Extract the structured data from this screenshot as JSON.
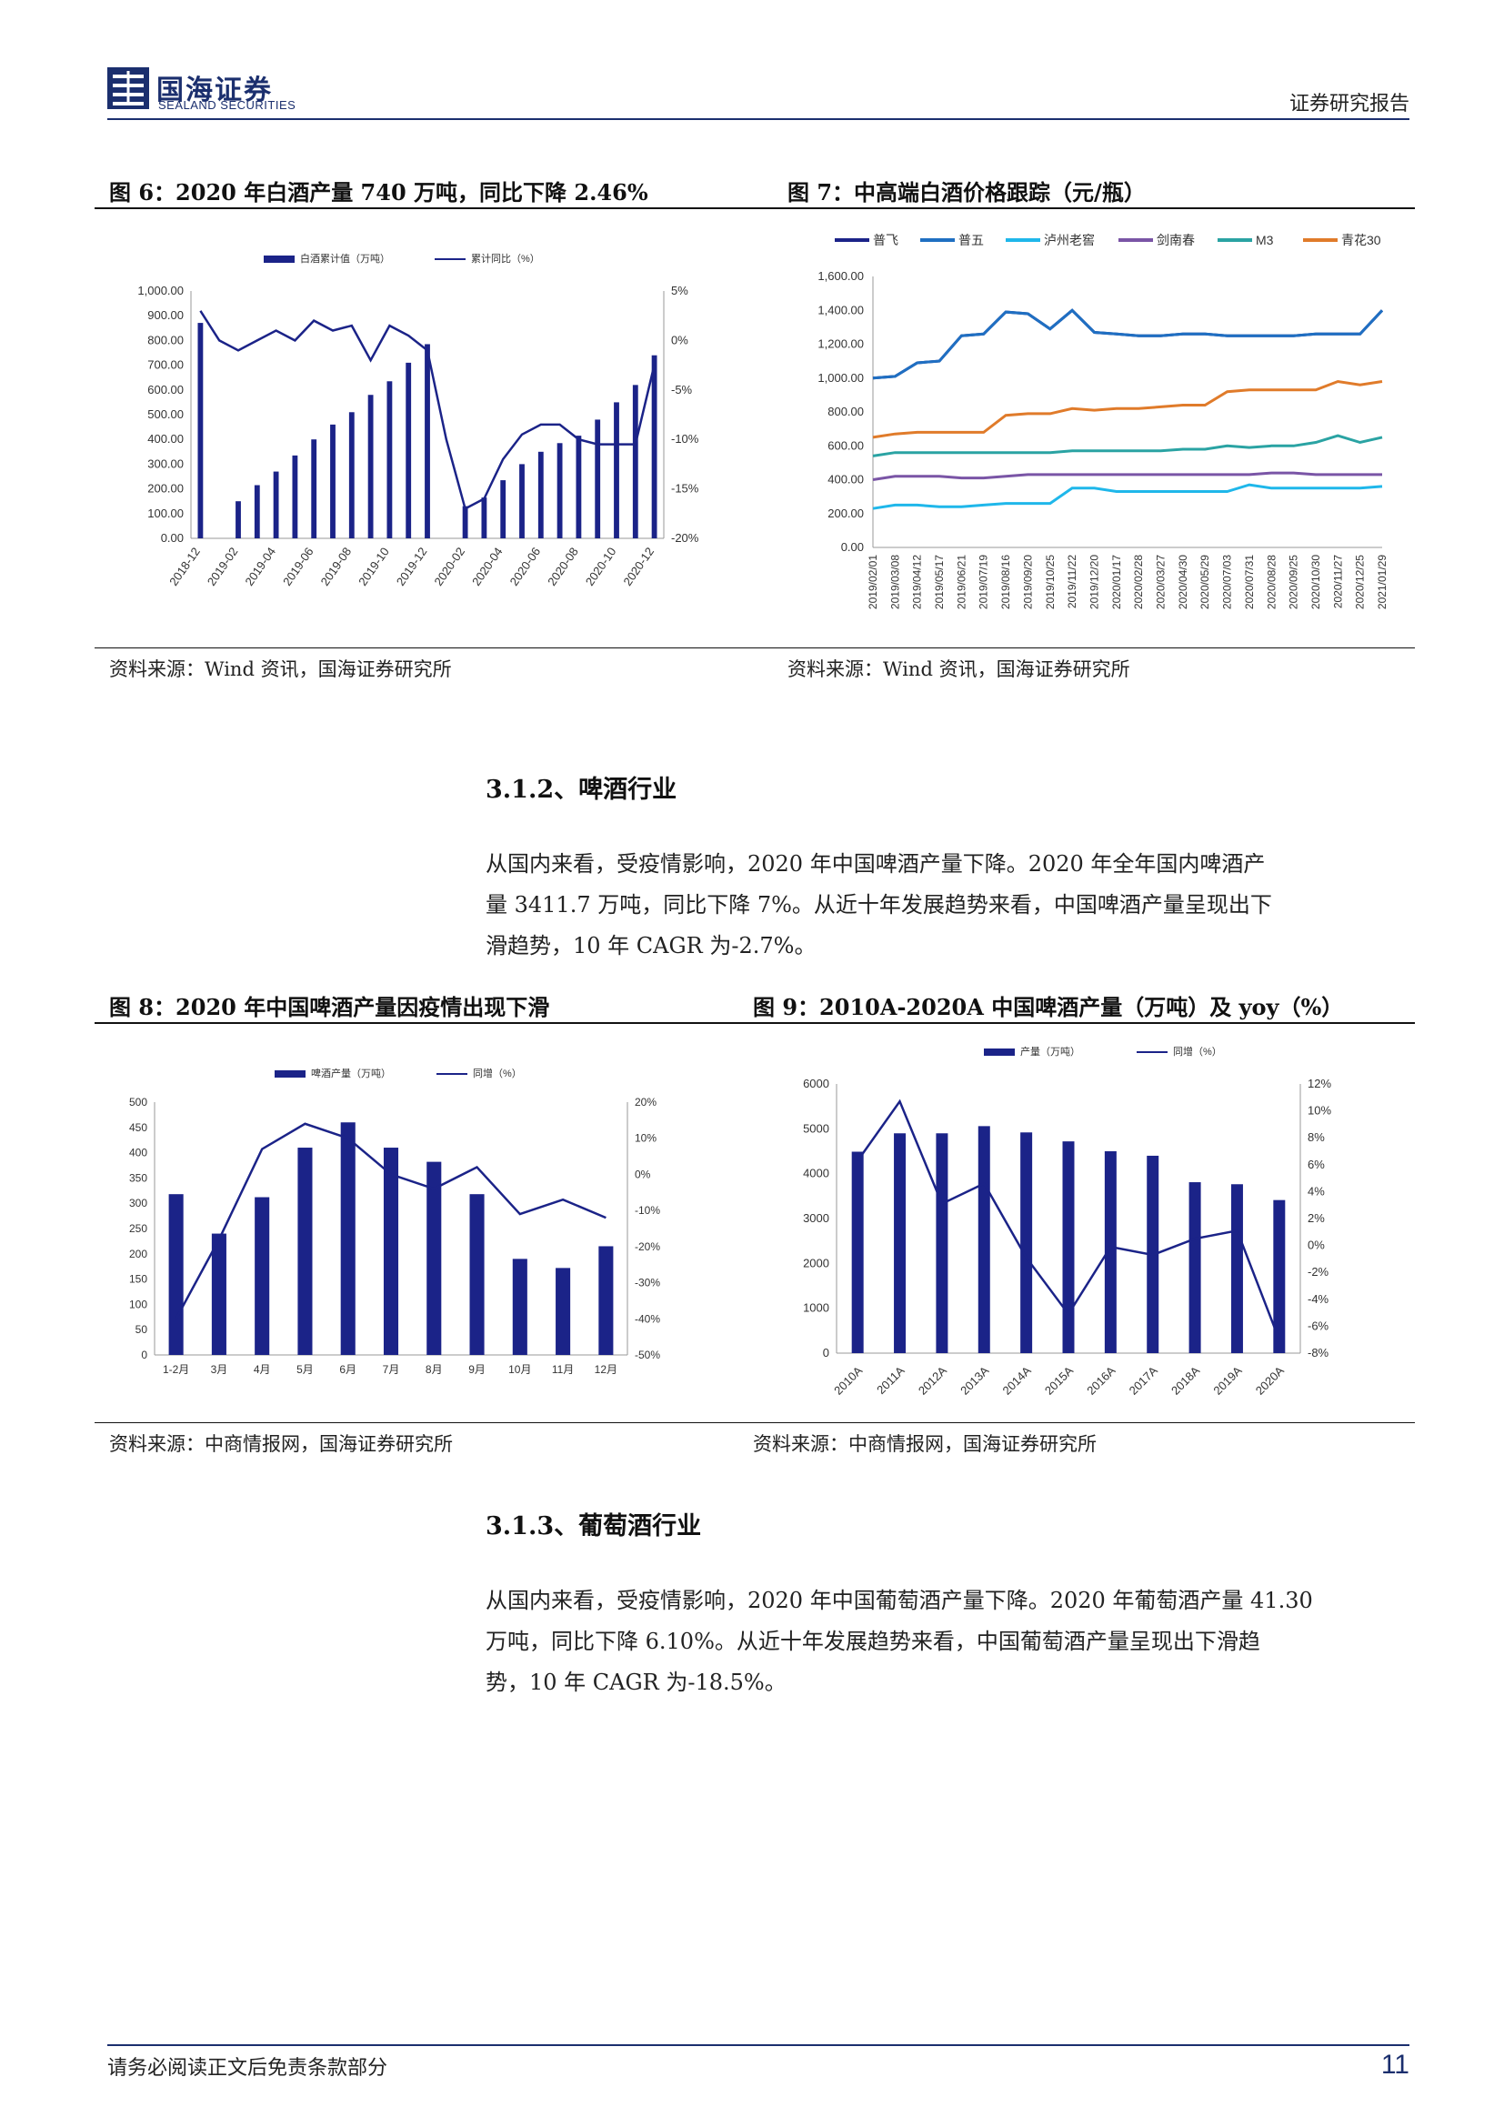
{
  "header": {
    "logo_cn": "国海证券",
    "logo_en": "SEALAND SECURITIES",
    "report_type": "证券研究报告"
  },
  "fig6": {
    "title": "图 6：2020 年白酒产量 740 万吨，同比下降 2.46%",
    "source": "资料来源：Wind 资讯，国海证券研究所",
    "chart_data": {
      "type": "bar",
      "legend": [
        "白酒累计值（万吨）",
        "累计同比（%）"
      ],
      "x": [
        "2018-12",
        "2019-01",
        "2019-02",
        "2019-03",
        "2019-04",
        "2019-05",
        "2019-06",
        "2019-07",
        "2019-08",
        "2019-09",
        "2019-10",
        "2019-11",
        "2019-12",
        "2020-01",
        "2020-02",
        "2020-03",
        "2020-04",
        "2020-05",
        "2020-06",
        "2020-07",
        "2020-08",
        "2020-09",
        "2020-10",
        "2020-11",
        "2020-12"
      ],
      "tick_labels": [
        "2018-12",
        "2019-02",
        "2019-04",
        "2019-06",
        "2019-08",
        "2019-10",
        "2019-12",
        "2020-02",
        "2020-04",
        "2020-06",
        "2020-08",
        "2020-10",
        "2020-12"
      ],
      "tick_index": [
        0,
        2,
        4,
        6,
        8,
        10,
        12,
        14,
        16,
        18,
        20,
        22,
        24
      ],
      "bars": [
        871,
        null,
        150,
        215,
        270,
        335,
        400,
        460,
        510,
        580,
        635,
        710,
        785,
        null,
        130,
        165,
        235,
        300,
        350,
        385,
        415,
        480,
        550,
        620,
        740
      ],
      "line": [
        3,
        0,
        -1,
        0,
        1,
        0,
        2,
        1,
        1.5,
        -2,
        1.5,
        0.5,
        -1,
        -10,
        -17,
        -16,
        -12,
        -9.5,
        -8.5,
        -8.5,
        -10,
        -10.5,
        -10.5,
        -10.5,
        -2.46
      ],
      "y_left_ticks": [
        "1,000.00",
        "900.00",
        "800.00",
        "700.00",
        "600.00",
        "500.00",
        "400.00",
        "300.00",
        "200.00",
        "100.00",
        "0.00"
      ],
      "ylim_left": [
        0,
        1000
      ],
      "y_right_ticks": [
        "5%",
        "0%",
        "-5%",
        "-10%",
        "-15%",
        "-20%"
      ],
      "ylim_right": [
        -20,
        5
      ],
      "colors": {
        "bar": "#1b2388",
        "line": "#1b2388"
      }
    }
  },
  "fig7": {
    "title": "图 7：中高端白酒价格跟踪（元/瓶）",
    "source": "资料来源：Wind 资讯，国海证券研究所",
    "chart_data": {
      "type": "line",
      "x_labels": [
        "2019/02/01",
        "2019/03/08",
        "2019/04/12",
        "2019/05/17",
        "2019/06/21",
        "2019/07/19",
        "2019/08/16",
        "2019/09/20",
        "2019/10/25",
        "2019/11/22",
        "2019/12/20",
        "2020/01/17",
        "2020/02/28",
        "2020/03/27",
        "2020/04/30",
        "2020/05/29",
        "2020/07/03",
        "2020/07/31",
        "2020/08/28",
        "2020/09/25",
        "2020/10/30",
        "2020/11/27",
        "2020/12/25",
        "2021/01/29"
      ],
      "y_ticks": [
        "1,600.00",
        "1,400.00",
        "1,200.00",
        "1,000.00",
        "800.00",
        "600.00",
        "400.00",
        "200.00",
        "0.00"
      ],
      "ylim": [
        0,
        1600
      ],
      "series": [
        {
          "name": "普飞",
          "color": "#1b2388",
          "values": [
            1000,
            1010,
            1090,
            1100,
            1250,
            1260,
            1390,
            1380,
            1290,
            1400,
            1270,
            1260,
            1250,
            1250,
            1260,
            1260,
            1250,
            1250,
            1250,
            1250,
            1260,
            1260,
            1260,
            1400
          ]
        },
        {
          "name": "普五",
          "color": "#1f6fc2",
          "values": [
            1000,
            1010,
            1090,
            1100,
            1250,
            1260,
            1390,
            1380,
            1290,
            1400,
            1270,
            1260,
            1250,
            1250,
            1260,
            1260,
            1250,
            1250,
            1250,
            1250,
            1260,
            1260,
            1260,
            1400
          ]
        },
        {
          "name": "泸州老窖",
          "color": "#1fb7ea",
          "values": [
            230,
            250,
            250,
            240,
            240,
            250,
            260,
            260,
            260,
            350,
            350,
            330,
            330,
            330,
            330,
            330,
            330,
            370,
            350,
            350,
            350,
            350,
            350,
            360
          ]
        },
        {
          "name": "剑南春",
          "color": "#7a55a6",
          "values": [
            400,
            420,
            420,
            420,
            410,
            410,
            420,
            430,
            430,
            430,
            430,
            430,
            430,
            430,
            430,
            430,
            430,
            430,
            440,
            440,
            430,
            430,
            430,
            430
          ]
        },
        {
          "name": "M3",
          "color": "#2aa3a3",
          "values": [
            540,
            560,
            560,
            560,
            560,
            560,
            560,
            560,
            560,
            570,
            570,
            570,
            570,
            570,
            580,
            580,
            600,
            590,
            600,
            600,
            620,
            660,
            620,
            650
          ]
        },
        {
          "name": "青花30",
          "color": "#e07b2a",
          "values": [
            650,
            670,
            680,
            680,
            680,
            680,
            780,
            790,
            790,
            820,
            810,
            820,
            820,
            830,
            840,
            840,
            920,
            930,
            930,
            930,
            930,
            980,
            960,
            980
          ]
        }
      ]
    }
  },
  "sec312": {
    "title": "3.1.2、啤酒行业",
    "para": [
      "从国内来看，受疫情影响，2020 年中国啤酒产量下降。2020 年全年国内啤酒产",
      "量 3411.7 万吨，同比下降 7%。从近十年发展趋势来看，中国啤酒产量呈现出下",
      "滑趋势，10 年 CAGR 为-2.7%。"
    ]
  },
  "fig8": {
    "title": "图 8：2020 年中国啤酒产量因疫情出现下滑",
    "source": "资料来源：中商情报网，国海证券研究所",
    "chart_data": {
      "type": "bar",
      "legend": [
        "啤酒产量（万吨）",
        "同增（%）"
      ],
      "categories": [
        "1-2月",
        "3月",
        "4月",
        "5月",
        "6月",
        "7月",
        "8月",
        "9月",
        "10月",
        "11月",
        "12月"
      ],
      "bars": [
        318,
        240,
        312,
        410,
        460,
        410,
        382,
        318,
        190,
        172,
        215
      ],
      "line": [
        -40,
        -18,
        7,
        14,
        10,
        0,
        -4,
        2,
        -11,
        -7,
        -12
      ],
      "y_left_ticks": [
        "500",
        "450",
        "400",
        "350",
        "300",
        "250",
        "200",
        "150",
        "100",
        "50",
        "0"
      ],
      "ylim_left": [
        0,
        500
      ],
      "y_right_ticks": [
        "20%",
        "10%",
        "0%",
        "-10%",
        "-20%",
        "-30%",
        "-40%",
        "-50%"
      ],
      "ylim_right": [
        -50,
        20
      ],
      "colors": {
        "bar": "#1b2388",
        "line": "#1b2388"
      }
    }
  },
  "fig9": {
    "title": "图 9：2010A-2020A 中国啤酒产量（万吨）及 yoy（%）",
    "source": "资料来源：中商情报网，国海证券研究所",
    "chart_data": {
      "type": "bar",
      "legend": [
        "产量（万吨）",
        "同增（%）"
      ],
      "categories": [
        "2010A",
        "2011A",
        "2012A",
        "2013A",
        "2014A",
        "2015A",
        "2016A",
        "2017A",
        "2018A",
        "2019A",
        "2020A"
      ],
      "bars": [
        4490,
        4900,
        4900,
        5060,
        4920,
        4720,
        4500,
        4400,
        3810,
        3765,
        3412
      ],
      "line": [
        6.3,
        10.7,
        3.1,
        4.6,
        -0.9,
        -5.1,
        -0.1,
        -0.7,
        0.5,
        1.1,
        -7
      ],
      "y_left_ticks": [
        "6000",
        "5000",
        "4000",
        "3000",
        "2000",
        "1000",
        "0"
      ],
      "ylim_left": [
        0,
        6000
      ],
      "y_right_ticks": [
        "12%",
        "10%",
        "8%",
        "6%",
        "4%",
        "2%",
        "0%",
        "-2%",
        "-4%",
        "-6%",
        "-8%"
      ],
      "ylim_right": [
        -8,
        12
      ],
      "colors": {
        "bar": "#1b2388",
        "line": "#1b2388"
      }
    }
  },
  "sec313": {
    "title": "3.1.3、葡萄酒行业",
    "para": [
      "从国内来看，受疫情影响，2020 年中国葡萄酒产量下降。2020 年葡萄酒产量 41.30",
      "万吨，同比下降 6.10%。从近十年发展趋势来看，中国葡萄酒产量呈现出下滑趋",
      "势，10 年 CAGR 为-18.5%。"
    ]
  },
  "footer": {
    "disclaimer": "请务必阅读正文后免责条款部分",
    "page_number": "11"
  }
}
